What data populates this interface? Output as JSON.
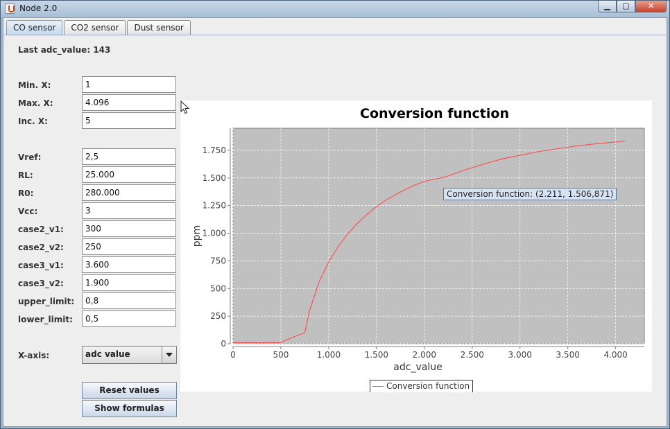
{
  "window": {
    "title": "Node 2.0",
    "minimize_glyph": "▁",
    "maximize_glyph": "▢",
    "close_glyph": "✕"
  },
  "tabs": [
    {
      "label": "CO sensor",
      "active": true
    },
    {
      "label": "CO2 sensor",
      "active": false
    },
    {
      "label": "Dust sensor",
      "active": false
    }
  ],
  "status": {
    "label": "Last adc_value:",
    "value": "143"
  },
  "range_fields": [
    {
      "label": "Min. X:",
      "value": "1"
    },
    {
      "label": "Max. X:",
      "value": "4.096"
    },
    {
      "label": "Inc. X:",
      "value": "5"
    }
  ],
  "param_fields": [
    {
      "label": "Vref:",
      "value": "2,5"
    },
    {
      "label": "RL:",
      "value": "25.000"
    },
    {
      "label": "R0:",
      "value": "280.000"
    },
    {
      "label": "Vcc:",
      "value": "3"
    },
    {
      "label": "case2_v1:",
      "value": "300"
    },
    {
      "label": "case2_v2:",
      "value": "250"
    },
    {
      "label": "case3_v1:",
      "value": "3.600"
    },
    {
      "label": "case3_v2:",
      "value": "1.900"
    },
    {
      "label": "upper_limit:",
      "value": "0,8"
    },
    {
      "label": "lower_limit:",
      "value": "0,5"
    }
  ],
  "xaxis_select": {
    "label": "X-axis:",
    "value": "adc value"
  },
  "buttons": {
    "reset": "Reset values",
    "formulas": "Show formulas"
  },
  "tooltip": "Conversion function: (2.211, 1.506,871)",
  "chart_data": {
    "type": "line",
    "title": "Conversion function",
    "xlabel": "adc_value",
    "ylabel": "ppm",
    "xlim": [
      0,
      4300
    ],
    "ylim": [
      0,
      1950
    ],
    "x_ticks": [
      0,
      500,
      1000,
      1500,
      2000,
      2500,
      3000,
      3500,
      4000
    ],
    "x_tick_labels": [
      "0",
      "500",
      "1.000",
      "1.500",
      "2.000",
      "2.500",
      "3.000",
      "3.500",
      "4.000"
    ],
    "y_ticks": [
      0,
      250,
      500,
      750,
      1000,
      1250,
      1500,
      1750
    ],
    "y_tick_labels": [
      "0",
      "250",
      "500",
      "750",
      "1.000",
      "1.250",
      "1.500",
      "1.750"
    ],
    "grid": true,
    "legend_position": "bottom-center",
    "plot_background": "#c0c0c0",
    "series": [
      {
        "name": "Conversion function",
        "color": "#ff4a4a",
        "x": [
          1,
          500,
          510,
          600,
          750,
          800,
          900,
          1000,
          1100,
          1200,
          1300,
          1400,
          1500,
          1600,
          1700,
          1800,
          1900,
          2000,
          2211,
          2400,
          2600,
          2800,
          3000,
          3200,
          3400,
          3600,
          3800,
          4000,
          4096
        ],
        "y": [
          10,
          10,
          15,
          50,
          100,
          300,
          560,
          740,
          880,
          995,
          1090,
          1170,
          1240,
          1300,
          1350,
          1395,
          1435,
          1470,
          1507,
          1565,
          1620,
          1670,
          1705,
          1740,
          1765,
          1790,
          1810,
          1825,
          1835
        ]
      }
    ]
  }
}
